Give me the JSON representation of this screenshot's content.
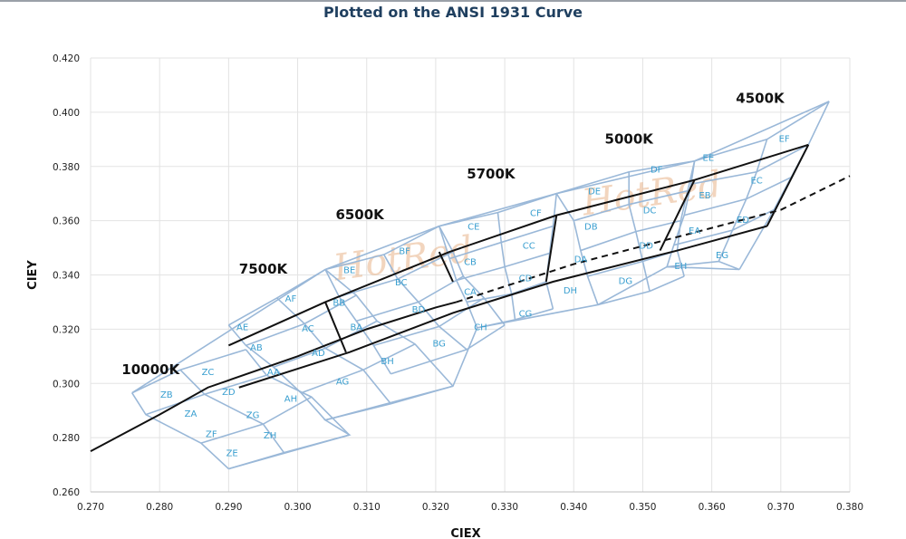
{
  "chart_data": {
    "type": "scatter",
    "title": "Plotted on the ANSI 1931 Curve",
    "xlabel": "CIEX",
    "ylabel": "CIEY",
    "xlim": [
      0.27,
      0.38
    ],
    "ylim": [
      0.26,
      0.42
    ],
    "xticks": [
      "0.270",
      "0.280",
      "0.290",
      "0.300",
      "0.310",
      "0.320",
      "0.330",
      "0.340",
      "0.350",
      "0.360",
      "0.370",
      "0.380"
    ],
    "yticks": [
      "0.260",
      "0.280",
      "0.300",
      "0.320",
      "0.340",
      "0.360",
      "0.380",
      "0.400",
      "0.420"
    ],
    "grid": true,
    "watermark": "HotRed",
    "colors": {
      "bins": "#9ab8d8",
      "bin_labels": "#3a9fd0",
      "locus": "#111111",
      "grid": "#e3e3e3"
    },
    "cct_labels": [
      {
        "text": "10000K",
        "x": 0.2745,
        "y": 0.3035
      },
      {
        "text": "7500K",
        "x": 0.2915,
        "y": 0.3405
      },
      {
        "text": "6500K",
        "x": 0.3055,
        "y": 0.3605
      },
      {
        "text": "5700K",
        "x": 0.3245,
        "y": 0.3755
      },
      {
        "text": "5000K",
        "x": 0.3445,
        "y": 0.3885
      },
      {
        "text": "4500K",
        "x": 0.3635,
        "y": 0.4035
      }
    ],
    "bin_labels": [
      {
        "text": "ZB",
        "x": 0.281,
        "y": 0.296
      },
      {
        "text": "ZC",
        "x": 0.287,
        "y": 0.3045
      },
      {
        "text": "ZA",
        "x": 0.2845,
        "y": 0.289
      },
      {
        "text": "ZD",
        "x": 0.29,
        "y": 0.297
      },
      {
        "text": "ZF",
        "x": 0.2875,
        "y": 0.2815
      },
      {
        "text": "ZG",
        "x": 0.2935,
        "y": 0.2885
      },
      {
        "text": "ZE",
        "x": 0.2905,
        "y": 0.2745
      },
      {
        "text": "ZH",
        "x": 0.296,
        "y": 0.281
      },
      {
        "text": "AE",
        "x": 0.292,
        "y": 0.321
      },
      {
        "text": "AF",
        "x": 0.299,
        "y": 0.3315
      },
      {
        "text": "AB",
        "x": 0.294,
        "y": 0.3135
      },
      {
        "text": "AC",
        "x": 0.3015,
        "y": 0.3205
      },
      {
        "text": "AA",
        "x": 0.2965,
        "y": 0.3045
      },
      {
        "text": "AD",
        "x": 0.303,
        "y": 0.3115
      },
      {
        "text": "AH",
        "x": 0.299,
        "y": 0.2945
      },
      {
        "text": "AG",
        "x": 0.3065,
        "y": 0.301
      },
      {
        "text": "BE",
        "x": 0.3075,
        "y": 0.342
      },
      {
        "text": "BF",
        "x": 0.3155,
        "y": 0.349
      },
      {
        "text": "BB",
        "x": 0.306,
        "y": 0.33
      },
      {
        "text": "BC",
        "x": 0.315,
        "y": 0.3375
      },
      {
        "text": "BA",
        "x": 0.3085,
        "y": 0.321
      },
      {
        "text": "BD",
        "x": 0.3175,
        "y": 0.3275
      },
      {
        "text": "BH",
        "x": 0.313,
        "y": 0.3085
      },
      {
        "text": "BG",
        "x": 0.3205,
        "y": 0.315
      },
      {
        "text": "CE",
        "x": 0.3255,
        "y": 0.358
      },
      {
        "text": "CF",
        "x": 0.3345,
        "y": 0.363
      },
      {
        "text": "CB",
        "x": 0.325,
        "y": 0.345
      },
      {
        "text": "CC",
        "x": 0.3335,
        "y": 0.351
      },
      {
        "text": "CA",
        "x": 0.325,
        "y": 0.334
      },
      {
        "text": "CD",
        "x": 0.333,
        "y": 0.339
      },
      {
        "text": "CH",
        "x": 0.3265,
        "y": 0.321
      },
      {
        "text": "CG",
        "x": 0.333,
        "y": 0.326
      },
      {
        "text": "DE",
        "x": 0.343,
        "y": 0.371
      },
      {
        "text": "DF",
        "x": 0.352,
        "y": 0.379
      },
      {
        "text": "DB",
        "x": 0.3425,
        "y": 0.358
      },
      {
        "text": "DC",
        "x": 0.351,
        "y": 0.364
      },
      {
        "text": "DA",
        "x": 0.341,
        "y": 0.346
      },
      {
        "text": "DD",
        "x": 0.3505,
        "y": 0.351
      },
      {
        "text": "DH",
        "x": 0.3395,
        "y": 0.3345
      },
      {
        "text": "DG",
        "x": 0.3475,
        "y": 0.338
      },
      {
        "text": "EE",
        "x": 0.3595,
        "y": 0.3835
      },
      {
        "text": "EF",
        "x": 0.3705,
        "y": 0.3905
      },
      {
        "text": "EB",
        "x": 0.359,
        "y": 0.3695
      },
      {
        "text": "EC",
        "x": 0.3665,
        "y": 0.375
      },
      {
        "text": "EA",
        "x": 0.3575,
        "y": 0.3565
      },
      {
        "text": "ED",
        "x": 0.3645,
        "y": 0.3605
      },
      {
        "text": "EH",
        "x": 0.3555,
        "y": 0.3435
      },
      {
        "text": "EG",
        "x": 0.3615,
        "y": 0.3475
      }
    ]
  }
}
